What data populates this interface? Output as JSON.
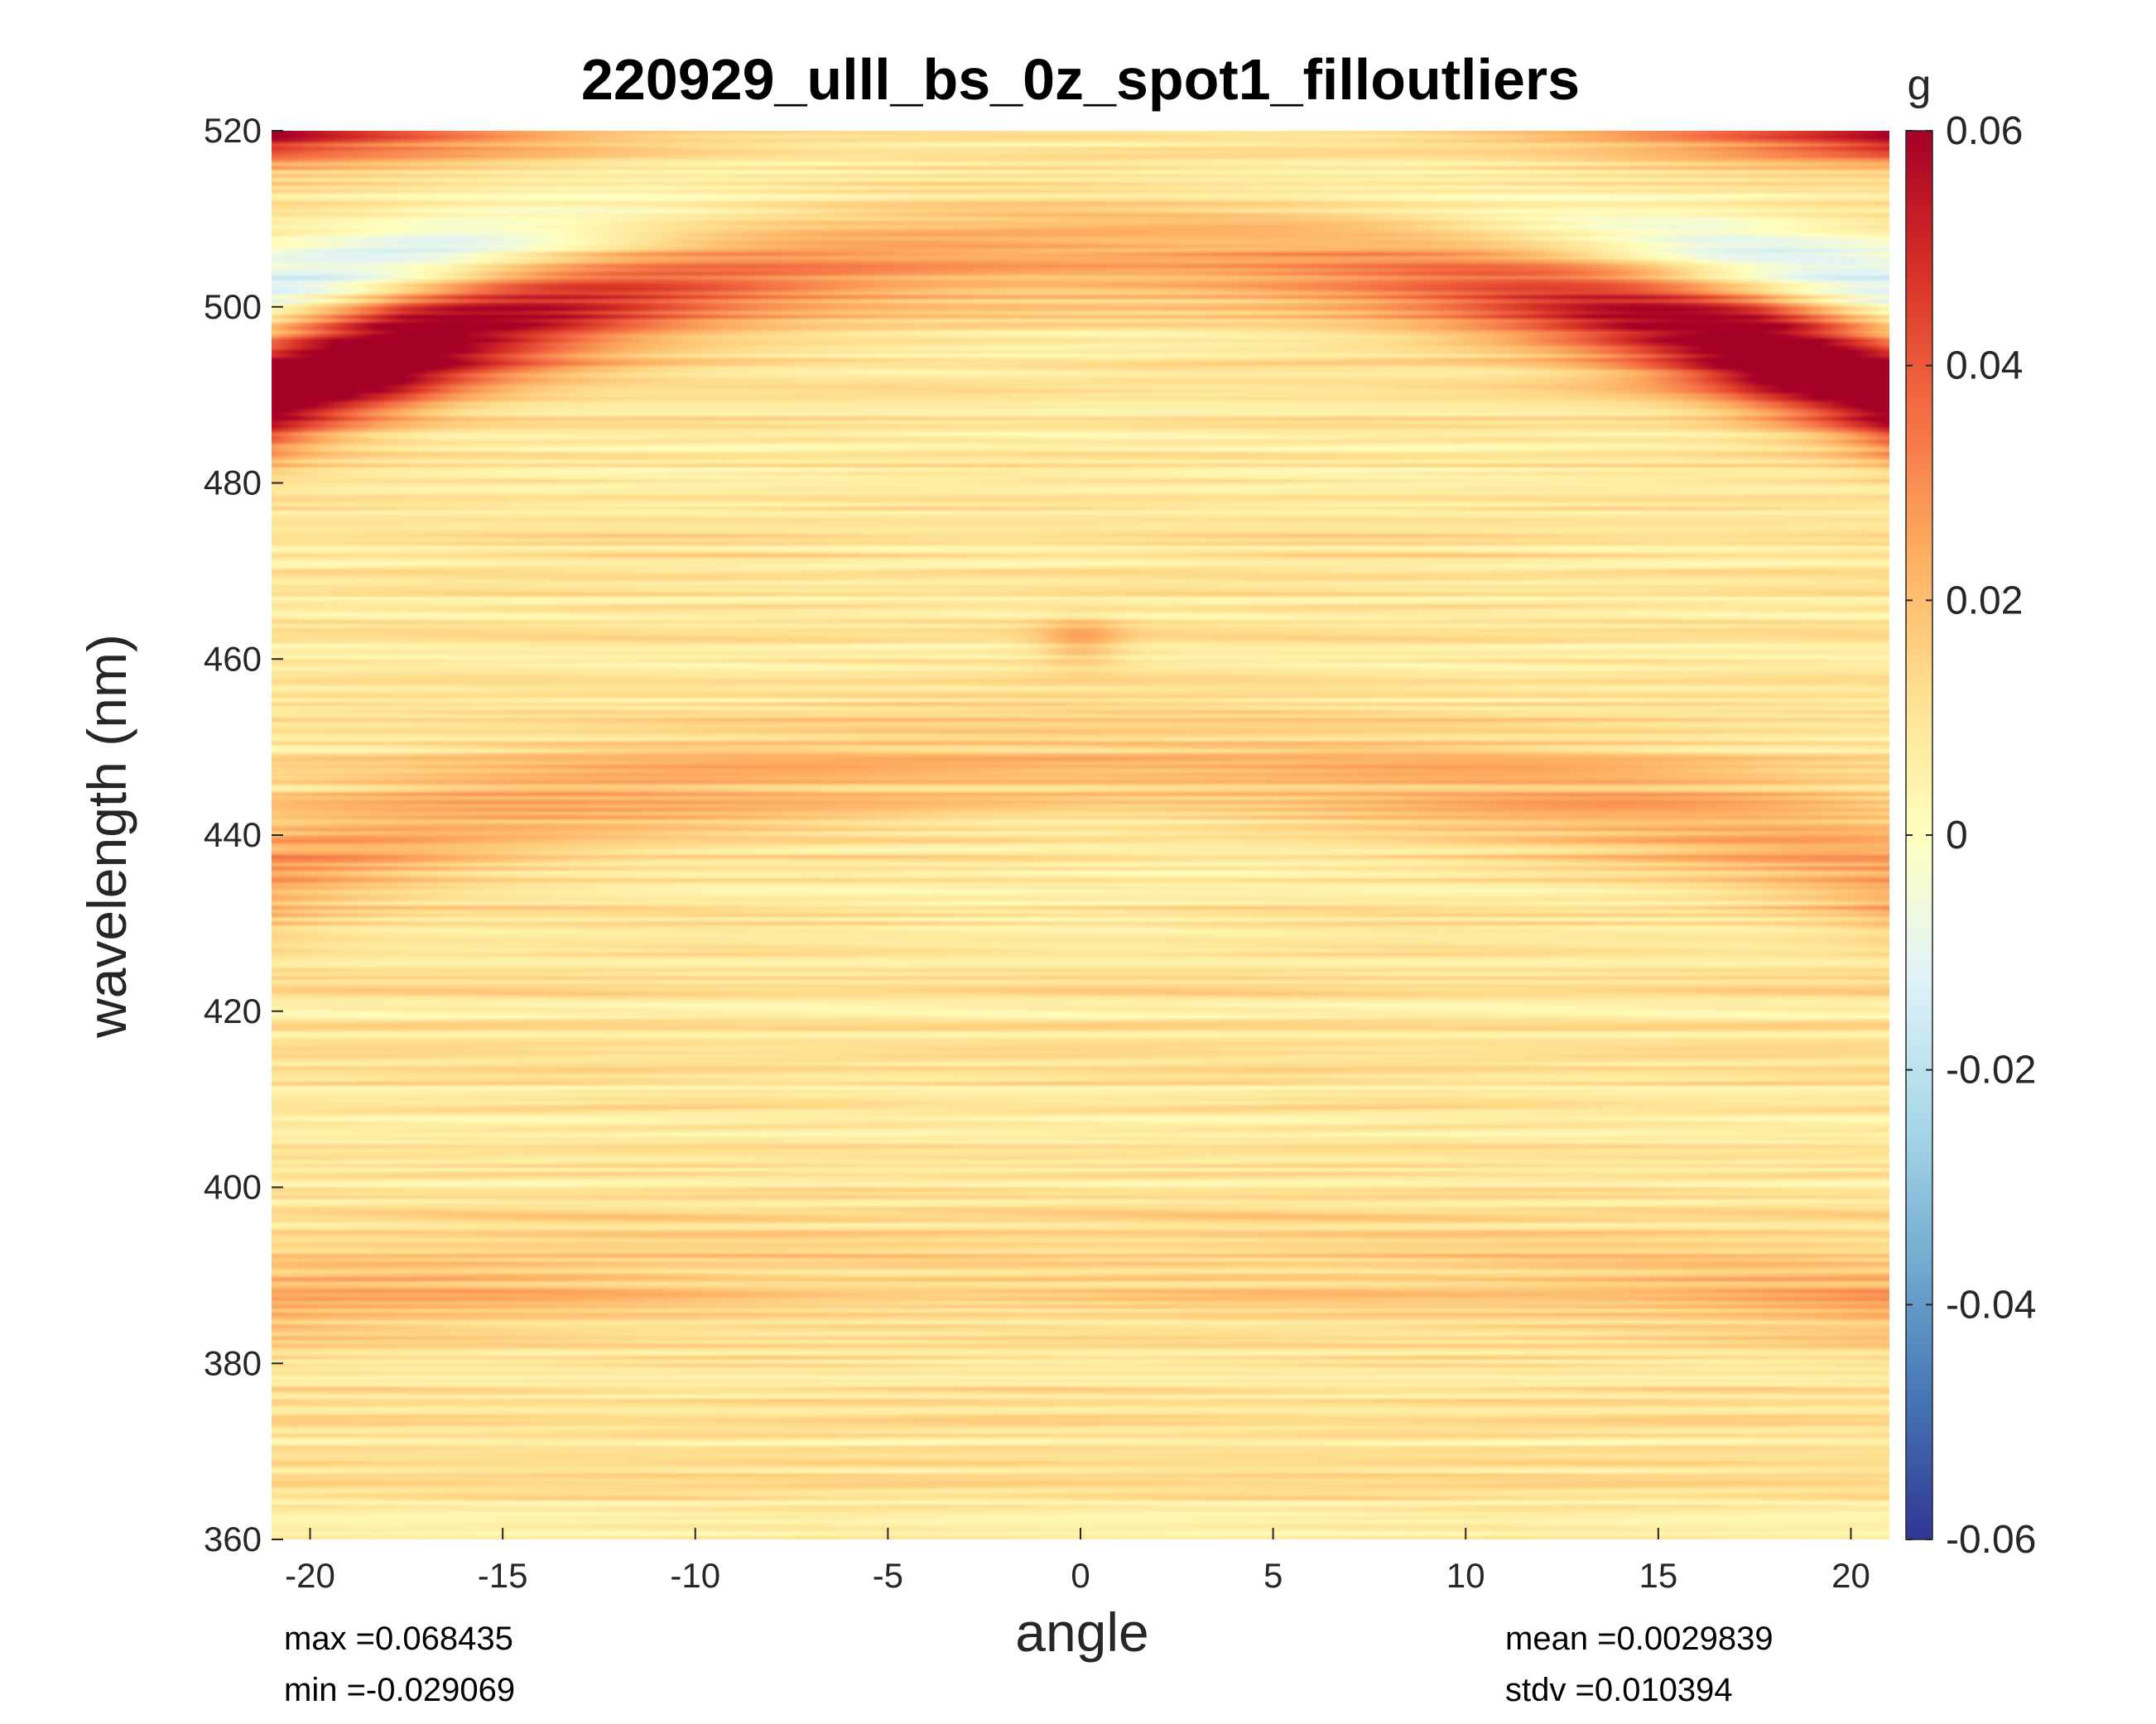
{
  "chart_data": {
    "type": "heatmap",
    "title": "220929_ulll_bs_0z_spot1_filloutliers",
    "xlabel": "angle",
    "ylabel": "wavelength (nm)",
    "xlim": [
      -21,
      21
    ],
    "ylim": [
      360,
      520
    ],
    "xticks": [
      -20,
      -15,
      -10,
      -5,
      0,
      5,
      10,
      15,
      20
    ],
    "yticks": [
      360,
      380,
      400,
      420,
      440,
      460,
      480,
      500,
      520
    ],
    "colorbar": {
      "label": "g",
      "range": [
        -0.06,
        0.06
      ],
      "ticks": [
        -0.06,
        -0.04,
        -0.02,
        0,
        0.02,
        0.04,
        0.06
      ],
      "tick_labels": [
        "-0.06",
        "-0.04",
        "-0.02",
        "0",
        "0.02",
        "0.04",
        "0.06"
      ],
      "colormap_stops": [
        "#313695",
        "#4575b4",
        "#74add1",
        "#abd9e9",
        "#e0f3f8",
        "#ffffbf",
        "#fee090",
        "#fdae61",
        "#f46d43",
        "#d73027",
        "#a50026"
      ]
    },
    "features": [
      {
        "name": "red arc",
        "curve": "lambda = 508 - 0.035*angle^2",
        "peak_value": 0.068,
        "width_nm": 4.5
      },
      {
        "name": "blue arc",
        "curve": "lambda = 511 - 0.022*angle^2",
        "peak_value": -0.016,
        "width_nm": 3.5
      },
      {
        "name": "orange arc",
        "curve": "lambda = 450 - 0.027*angle^2",
        "peak_value": 0.019,
        "width_nm": 5
      },
      {
        "name": "orange band",
        "wavelength": 390,
        "peak_value": 0.012
      },
      {
        "name": "center spot",
        "angle": 0,
        "wavelength": 462,
        "peak_value": 0.014
      }
    ],
    "background_mean": 0.0029839,
    "background_stdv": 0.010394
  },
  "stats": {
    "max": "max =0.068435",
    "min": "min =-0.029069",
    "mean": "mean =0.0029839",
    "stdv": "stdv =0.010394"
  }
}
